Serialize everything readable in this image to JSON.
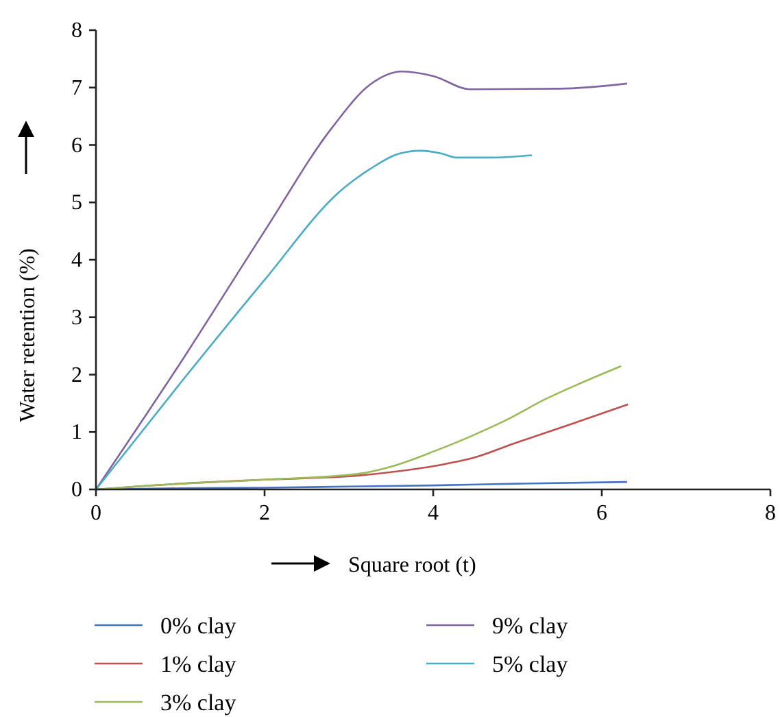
{
  "chart_data": {
    "type": "line",
    "xlabel": "Square root (t)",
    "ylabel": "Water retention (%)",
    "xlim": [
      0,
      8
    ],
    "ylim": [
      0,
      8
    ],
    "xticks": [
      0,
      2,
      4,
      6,
      8
    ],
    "yticks": [
      0,
      1,
      2,
      3,
      4,
      5,
      6,
      7,
      8
    ],
    "grid": false,
    "legend": "bottom",
    "marker": "none",
    "line_style": "solid",
    "series": [
      {
        "name": "0% clay",
        "color": "#4472c4",
        "x": [
          0,
          1,
          2,
          3,
          4,
          5,
          6.3
        ],
        "values": [
          0,
          0.02,
          0.03,
          0.05,
          0.07,
          0.1,
          0.13
        ]
      },
      {
        "name": "1% clay",
        "color": "#c0504d",
        "x": [
          0,
          1,
          2,
          3.1,
          3.6,
          4.1,
          4.5,
          4.94,
          5.6,
          6.31
        ],
        "values": [
          0,
          0.1,
          0.17,
          0.24,
          0.32,
          0.43,
          0.56,
          0.79,
          1.12,
          1.48
        ]
      },
      {
        "name": "3% clay",
        "color": "#9bbb59",
        "x": [
          0,
          1,
          2,
          3.1,
          3.53,
          4.02,
          4.5,
          4.91,
          5.3,
          5.7,
          6.23
        ],
        "values": [
          0,
          0.1,
          0.17,
          0.27,
          0.41,
          0.67,
          0.96,
          1.24,
          1.55,
          1.82,
          2.15
        ]
      },
      {
        "name": "9% clay",
        "color": "#8064a2",
        "x": [
          0,
          1,
          2,
          2.8,
          3.25,
          3.63,
          4.0,
          4.44,
          5.5,
          6.3
        ],
        "values": [
          0,
          2.2,
          4.5,
          6.3,
          7.05,
          7.28,
          7.2,
          6.97,
          6.98,
          7.07
        ]
      },
      {
        "name": "5% clay",
        "color": "#4bacc6",
        "x": [
          0,
          1,
          2,
          2.9,
          3.25,
          3.6,
          3.85,
          4.1,
          4.28,
          4.7,
          5.17
        ],
        "values": [
          0,
          1.85,
          3.65,
          5.2,
          5.58,
          5.85,
          5.9,
          5.85,
          5.78,
          5.78,
          5.82
        ]
      }
    ]
  }
}
